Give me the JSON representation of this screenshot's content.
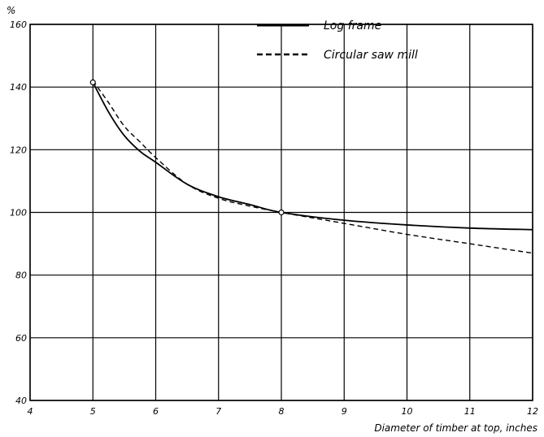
{
  "chart_data": {
    "type": "line",
    "title": "",
    "xlabel": "Diameter of timber at top, inches",
    "ylabel": "%",
    "xlim": [
      4,
      12
    ],
    "ylim": [
      40,
      160
    ],
    "x_ticks": [
      "4",
      "5",
      "6",
      "7",
      "8",
      "9",
      "10",
      "11",
      "12"
    ],
    "y_ticks": [
      "40",
      "60",
      "80",
      "100",
      "120",
      "140",
      "160"
    ],
    "grid": true,
    "legend_position": "top-right",
    "series": [
      {
        "name": "Log frame",
        "style": "solid",
        "x": [
          5,
          5.25,
          5.5,
          5.75,
          6,
          6.5,
          7,
          7.5,
          8,
          9,
          10,
          11,
          12
        ],
        "y": [
          141.5,
          132,
          124.5,
          119.5,
          116,
          109,
          105,
          102.5,
          100,
          97.5,
          96,
          95,
          94.5
        ]
      },
      {
        "name": "Circular saw mill",
        "style": "dashed",
        "x": [
          5,
          5.25,
          5.5,
          5.75,
          6,
          6.5,
          7,
          7.5,
          8,
          9,
          10,
          11,
          12
        ],
        "y": [
          142,
          135,
          127.5,
          122.5,
          117.5,
          109,
          104.5,
          102,
          100,
          96.5,
          93,
          90,
          87
        ]
      }
    ],
    "markers": [
      {
        "x": 5,
        "y": 141.5
      },
      {
        "x": 8,
        "y": 100
      }
    ]
  }
}
